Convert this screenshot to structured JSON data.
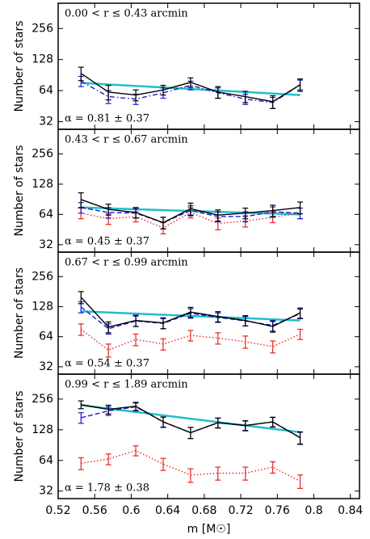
{
  "chart_data": [
    {
      "type": "line",
      "annotation_top": "0.00 < r ≤ 0.43 arcmin",
      "annotation_bottom": "α = 0.81 ± 0.37",
      "ylabel": "Number of stars",
      "x": [
        0.545,
        0.575,
        0.605,
        0.635,
        0.665,
        0.695,
        0.725,
        0.755,
        0.785
      ],
      "xlim": [
        0.52,
        0.85
      ],
      "xticks": [
        0.52,
        0.56,
        0.6,
        0.64,
        0.68,
        0.72,
        0.76,
        0.8,
        0.84
      ],
      "ylim": [
        27,
        450
      ],
      "yticks": [
        32,
        64,
        128,
        256
      ],
      "yscale": "log2",
      "series": [
        {
          "color": "#000000",
          "linestyle": "solid",
          "values": [
            94,
            62,
            58,
            65,
            77,
            62,
            56,
            50,
            73
          ],
          "errors": [
            14,
            10,
            7,
            7,
            8,
            8,
            7,
            7,
            10
          ]
        },
        {
          "color": "#1a1ad6",
          "linestyle": "dashdot",
          "values": [
            79,
            56,
            53,
            61,
            72,
            61,
            53,
            49,
            73
          ],
          "errors": [
            9,
            8,
            6,
            7,
            7,
            7,
            6,
            6,
            8
          ]
        }
      ],
      "fit": {
        "color": "#22bfc8",
        "x": [
          0.545,
          0.785
        ],
        "values": [
          76,
          58
        ]
      }
    },
    {
      "type": "line",
      "annotation_top": "0.43 < r ≤ 0.67 arcmin",
      "annotation_bottom": "α = 0.45 ± 0.37",
      "ylabel": "Number of stars",
      "x": [
        0.545,
        0.575,
        0.605,
        0.635,
        0.665,
        0.695,
        0.725,
        0.755,
        0.785
      ],
      "xlim": [
        0.52,
        0.85
      ],
      "xticks": [
        0.52,
        0.56,
        0.6,
        0.64,
        0.68,
        0.72,
        0.76,
        0.8,
        0.84
      ],
      "ylim": [
        27,
        450
      ],
      "yticks": [
        32,
        64,
        128,
        256
      ],
      "yscale": "log2",
      "series": [
        {
          "color": "#000000",
          "linestyle": "solid",
          "values": [
            90,
            72,
            67,
            53,
            73,
            63,
            66,
            70,
            75
          ],
          "errors": [
            15,
            9,
            8,
            7,
            10,
            8,
            8,
            9,
            10
          ]
        },
        {
          "color": "#1a1ad6",
          "linestyle": "dashed",
          "values": [
            75,
            67,
            66,
            53,
            70,
            61,
            61,
            68,
            66
          ],
          "errors": [
            9,
            8,
            7,
            7,
            8,
            7,
            7,
            8,
            8
          ]
        },
        {
          "color": "#e8231f",
          "linestyle": "dotted",
          "values": [
            66,
            58,
            61,
            47,
            67,
            52,
            55,
            60,
            66
          ],
          "errors": [
            8,
            7,
            7,
            6,
            8,
            7,
            7,
            7,
            8
          ]
        }
      ],
      "fit": {
        "color": "#22bfc8",
        "x": [
          0.545,
          0.785
        ],
        "values": [
          75,
          64
        ]
      }
    },
    {
      "type": "line",
      "annotation_top": "0.67 < r ≤ 0.99 arcmin",
      "annotation_bottom": "α = 0.54 ± 0.37",
      "ylabel": "Number of stars",
      "x": [
        0.545,
        0.575,
        0.605,
        0.635,
        0.665,
        0.695,
        0.725,
        0.755,
        0.785
      ],
      "xlim": [
        0.52,
        0.85
      ],
      "xticks": [
        0.52,
        0.56,
        0.6,
        0.64,
        0.68,
        0.72,
        0.76,
        0.8,
        0.84
      ],
      "ylim": [
        27,
        450
      ],
      "yticks": [
        32,
        64,
        128,
        256
      ],
      "yscale": "log2",
      "series": [
        {
          "color": "#000000",
          "linestyle": "solid",
          "values": [
            159,
            80,
            93,
            88,
            113,
            102,
            93,
            81,
            111
          ],
          "errors": [
            22,
            10,
            12,
            11,
            13,
            12,
            11,
            10,
            13
          ]
        },
        {
          "color": "#1a1ad6",
          "linestyle": "dashed",
          "values": [
            127,
            77,
            92,
            87,
            110,
            100,
            92,
            83,
            109
          ],
          "errors": [
            16,
            9,
            11,
            10,
            12,
            11,
            10,
            10,
            12
          ]
        },
        {
          "color": "#e8231f",
          "linestyle": "dotted",
          "values": [
            76,
            47,
            60,
            54,
            66,
            62,
            57,
            51,
            68
          ],
          "errors": [
            10,
            7,
            8,
            7,
            8,
            8,
            8,
            7,
            8
          ]
        }
      ],
      "fit": {
        "color": "#22bfc8",
        "x": [
          0.545,
          0.785
        ],
        "values": [
          115,
          93
        ]
      }
    },
    {
      "type": "line",
      "annotation_top": "0.99 < r ≤ 1.89 arcmin",
      "annotation_bottom": "α = 1.78 ± 0.38",
      "ylabel": "Number of stars",
      "xlabel": "m [M☉]",
      "x": [
        0.545,
        0.575,
        0.605,
        0.635,
        0.665,
        0.695,
        0.725,
        0.755,
        0.785
      ],
      "xlim": [
        0.52,
        0.85
      ],
      "xticks": [
        0.52,
        0.56,
        0.6,
        0.64,
        0.68,
        0.72,
        0.76,
        0.8,
        0.84
      ],
      "ylim": [
        27,
        450
      ],
      "yticks": [
        32,
        64,
        128,
        256
      ],
      "yscale": "log2",
      "series": [
        {
          "color": "#000000",
          "linestyle": "solid",
          "values": [
            226,
            203,
            218,
            153,
            120,
            150,
            141,
            153,
            107
          ],
          "errors": [
            20,
            20,
            20,
            18,
            15,
            17,
            16,
            17,
            15
          ]
        },
        {
          "color": "#1a1ad6",
          "linestyle": "dashed",
          "values": [
            168,
            196,
            215,
            153,
            120,
            150,
            141,
            153,
            107
          ],
          "errors": [
            20,
            19,
            19,
            17,
            15,
            16,
            15,
            16,
            14
          ]
        },
        {
          "color": "#e8231f",
          "linestyle": "dotted",
          "values": [
            60,
            66,
            80,
            59,
            46,
            48,
            48,
            55,
            40
          ],
          "errors": [
            8,
            8,
            9,
            8,
            7,
            7,
            7,
            7,
            6
          ]
        }
      ],
      "fit": {
        "color": "#22bfc8",
        "x": [
          0.545,
          0.785
        ],
        "values": [
          223,
          121
        ]
      }
    }
  ]
}
